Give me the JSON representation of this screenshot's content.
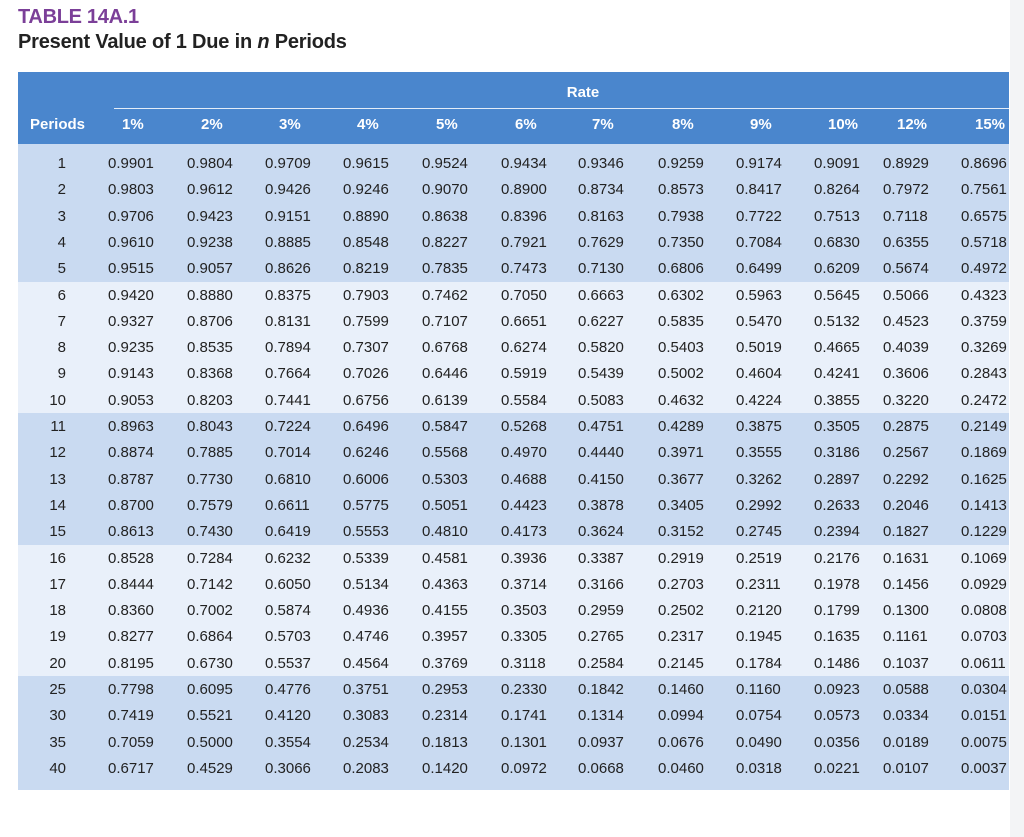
{
  "title": "TABLE 14A.1",
  "subtitle_prefix": "Present Value of 1 Due in ",
  "subtitle_var": "n",
  "subtitle_suffix": " Periods",
  "columns_group_label": "Rate",
  "periods_label": "Periods",
  "rates": [
    "1%",
    "2%",
    "3%",
    "4%",
    "5%",
    "6%",
    "7%",
    "8%",
    "9%",
    "10%",
    "12%",
    "15%"
  ],
  "rows": [
    {
      "period": "1",
      "values": [
        "0.9901",
        "0.9804",
        "0.9709",
        "0.9615",
        "0.9524",
        "0.9434",
        "0.9346",
        "0.9259",
        "0.9174",
        "0.9091",
        "0.8929",
        "0.8696"
      ]
    },
    {
      "period": "2",
      "values": [
        "0.9803",
        "0.9612",
        "0.9426",
        "0.9246",
        "0.9070",
        "0.8900",
        "0.8734",
        "0.8573",
        "0.8417",
        "0.8264",
        "0.7972",
        "0.7561"
      ]
    },
    {
      "period": "3",
      "values": [
        "0.9706",
        "0.9423",
        "0.9151",
        "0.8890",
        "0.8638",
        "0.8396",
        "0.8163",
        "0.7938",
        "0.7722",
        "0.7513",
        "0.7118",
        "0.6575"
      ]
    },
    {
      "period": "4",
      "values": [
        "0.9610",
        "0.9238",
        "0.8885",
        "0.8548",
        "0.8227",
        "0.7921",
        "0.7629",
        "0.7350",
        "0.7084",
        "0.6830",
        "0.6355",
        "0.5718"
      ]
    },
    {
      "period": "5",
      "values": [
        "0.9515",
        "0.9057",
        "0.8626",
        "0.8219",
        "0.7835",
        "0.7473",
        "0.7130",
        "0.6806",
        "0.6499",
        "0.6209",
        "0.5674",
        "0.4972"
      ]
    },
    {
      "period": "6",
      "values": [
        "0.9420",
        "0.8880",
        "0.8375",
        "0.7903",
        "0.7462",
        "0.7050",
        "0.6663",
        "0.6302",
        "0.5963",
        "0.5645",
        "0.5066",
        "0.4323"
      ]
    },
    {
      "period": "7",
      "values": [
        "0.9327",
        "0.8706",
        "0.8131",
        "0.7599",
        "0.7107",
        "0.6651",
        "0.6227",
        "0.5835",
        "0.5470",
        "0.5132",
        "0.4523",
        "0.3759"
      ]
    },
    {
      "period": "8",
      "values": [
        "0.9235",
        "0.8535",
        "0.7894",
        "0.7307",
        "0.6768",
        "0.6274",
        "0.5820",
        "0.5403",
        "0.5019",
        "0.4665",
        "0.4039",
        "0.3269"
      ]
    },
    {
      "period": "9",
      "values": [
        "0.9143",
        "0.8368",
        "0.7664",
        "0.7026",
        "0.6446",
        "0.5919",
        "0.5439",
        "0.5002",
        "0.4604",
        "0.4241",
        "0.3606",
        "0.2843"
      ]
    },
    {
      "period": "10",
      "values": [
        "0.9053",
        "0.8203",
        "0.7441",
        "0.6756",
        "0.6139",
        "0.5584",
        "0.5083",
        "0.4632",
        "0.4224",
        "0.3855",
        "0.3220",
        "0.2472"
      ]
    },
    {
      "period": "11",
      "values": [
        "0.8963",
        "0.8043",
        "0.7224",
        "0.6496",
        "0.5847",
        "0.5268",
        "0.4751",
        "0.4289",
        "0.3875",
        "0.3505",
        "0.2875",
        "0.2149"
      ]
    },
    {
      "period": "12",
      "values": [
        "0.8874",
        "0.7885",
        "0.7014",
        "0.6246",
        "0.5568",
        "0.4970",
        "0.4440",
        "0.3971",
        "0.3555",
        "0.3186",
        "0.2567",
        "0.1869"
      ]
    },
    {
      "period": "13",
      "values": [
        "0.8787",
        "0.7730",
        "0.6810",
        "0.6006",
        "0.5303",
        "0.4688",
        "0.4150",
        "0.3677",
        "0.3262",
        "0.2897",
        "0.2292",
        "0.1625"
      ]
    },
    {
      "period": "14",
      "values": [
        "0.8700",
        "0.7579",
        "0.6611",
        "0.5775",
        "0.5051",
        "0.4423",
        "0.3878",
        "0.3405",
        "0.2992",
        "0.2633",
        "0.2046",
        "0.1413"
      ]
    },
    {
      "period": "15",
      "values": [
        "0.8613",
        "0.7430",
        "0.6419",
        "0.5553",
        "0.4810",
        "0.4173",
        "0.3624",
        "0.3152",
        "0.2745",
        "0.2394",
        "0.1827",
        "0.1229"
      ]
    },
    {
      "period": "16",
      "values": [
        "0.8528",
        "0.7284",
        "0.6232",
        "0.5339",
        "0.4581",
        "0.3936",
        "0.3387",
        "0.2919",
        "0.2519",
        "0.2176",
        "0.1631",
        "0.1069"
      ]
    },
    {
      "period": "17",
      "values": [
        "0.8444",
        "0.7142",
        "0.6050",
        "0.5134",
        "0.4363",
        "0.3714",
        "0.3166",
        "0.2703",
        "0.2311",
        "0.1978",
        "0.1456",
        "0.0929"
      ]
    },
    {
      "period": "18",
      "values": [
        "0.8360",
        "0.7002",
        "0.5874",
        "0.4936",
        "0.4155",
        "0.3503",
        "0.2959",
        "0.2502",
        "0.2120",
        "0.1799",
        "0.1300",
        "0.0808"
      ]
    },
    {
      "period": "19",
      "values": [
        "0.8277",
        "0.6864",
        "0.5703",
        "0.4746",
        "0.3957",
        "0.3305",
        "0.2765",
        "0.2317",
        "0.1945",
        "0.1635",
        "0.1161",
        "0.0703"
      ]
    },
    {
      "period": "20",
      "values": [
        "0.8195",
        "0.6730",
        "0.5537",
        "0.4564",
        "0.3769",
        "0.3118",
        "0.2584",
        "0.2145",
        "0.1784",
        "0.1486",
        "0.1037",
        "0.0611"
      ]
    },
    {
      "period": "25",
      "values": [
        "0.7798",
        "0.6095",
        "0.4776",
        "0.3751",
        "0.2953",
        "0.2330",
        "0.1842",
        "0.1460",
        "0.1160",
        "0.0923",
        "0.0588",
        "0.0304"
      ]
    },
    {
      "period": "30",
      "values": [
        "0.7419",
        "0.5521",
        "0.4120",
        "0.3083",
        "0.2314",
        "0.1741",
        "0.1314",
        "0.0994",
        "0.0754",
        "0.0573",
        "0.0334",
        "0.0151"
      ]
    },
    {
      "period": "35",
      "values": [
        "0.7059",
        "0.5000",
        "0.3554",
        "0.2534",
        "0.1813",
        "0.1301",
        "0.0937",
        "0.0676",
        "0.0490",
        "0.0356",
        "0.0189",
        "0.0075"
      ]
    },
    {
      "period": "40",
      "values": [
        "0.6717",
        "0.4529",
        "0.3066",
        "0.2083",
        "0.1420",
        "0.0972",
        "0.0668",
        "0.0460",
        "0.0318",
        "0.0221",
        "0.0107",
        "0.0037"
      ]
    }
  ],
  "colors": {
    "title": "#7b3f98",
    "header_bg": "#4a86cd",
    "band_dark": "#c9daf1",
    "band_light": "#e9f0fa"
  }
}
